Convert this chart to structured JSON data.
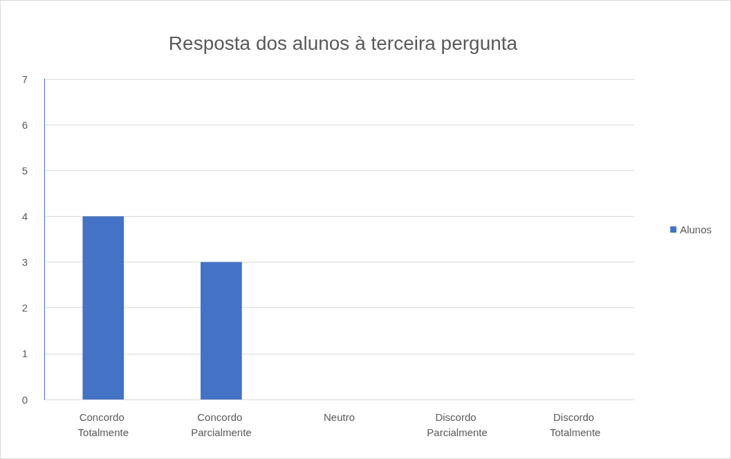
{
  "chart_data": {
    "type": "bar",
    "title": "Resposta dos alunos à terceira pergunta",
    "categories": [
      "Concordo Totalmente",
      "Concordo Parcialmente",
      "Neutro",
      "Discordo Parcialmente",
      "Discordo Totalmente"
    ],
    "series": [
      {
        "name": "Alunos",
        "color": "#4472c4",
        "values": [
          4,
          3,
          0,
          0,
          0
        ]
      }
    ],
    "ylim": [
      0,
      7
    ],
    "yticks": [
      0,
      1,
      2,
      3,
      4,
      5,
      6,
      7
    ],
    "grid": "y",
    "legend": "right"
  }
}
